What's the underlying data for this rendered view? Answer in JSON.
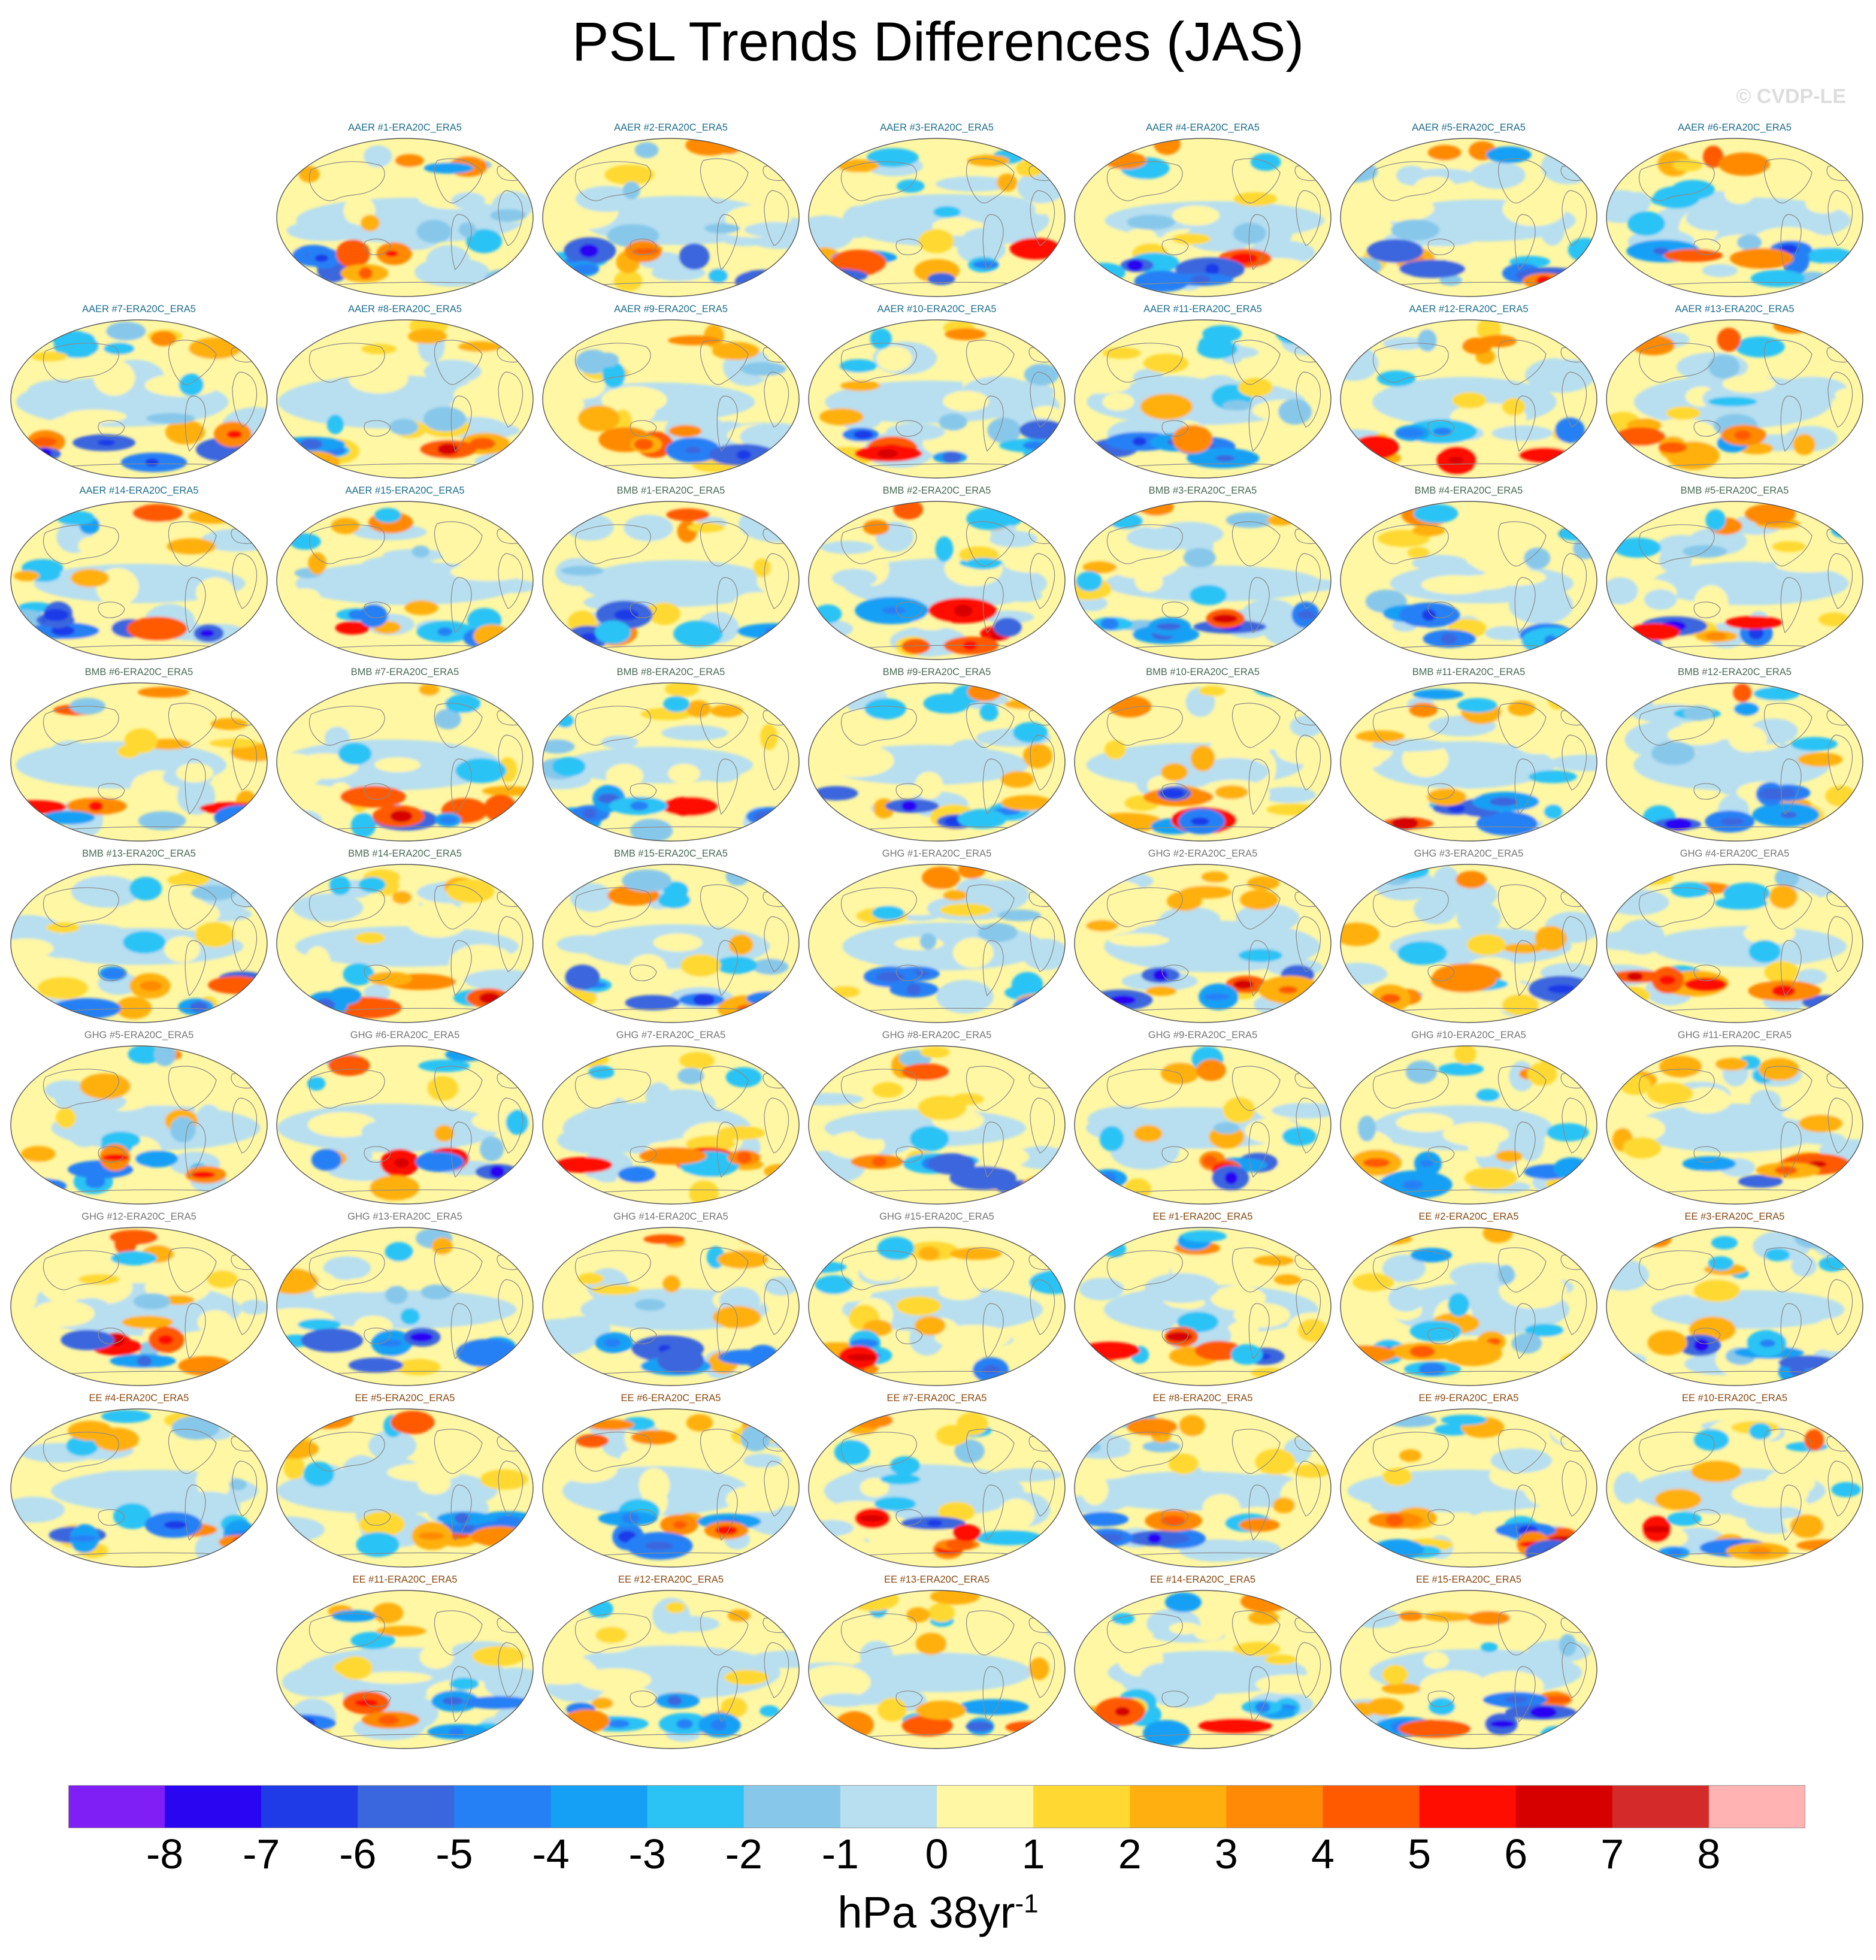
{
  "figure": {
    "title": "PSL Trends Differences (JAS)",
    "watermark": "© CVDP-LE",
    "units": {
      "base": "hPa 38yr",
      "exponent": "-1"
    }
  },
  "chart_data": {
    "type": "heatmap",
    "title": "PSL Trends Differences (JAS)",
    "projection": "global map (Robinson-like)",
    "panel_layout": "grid of 7 columns × 9 rows",
    "panels": [
      {
        "label": "AAER #1-ERA20C_ERA5",
        "group": "AAER"
      },
      {
        "label": "AAER #2-ERA20C_ERA5",
        "group": "AAER"
      },
      {
        "label": "AAER #3-ERA20C_ERA5",
        "group": "AAER"
      },
      {
        "label": "AAER #4-ERA20C_ERA5",
        "group": "AAER"
      },
      {
        "label": "AAER #5-ERA20C_ERA5",
        "group": "AAER"
      },
      {
        "label": "AAER #6-ERA20C_ERA5",
        "group": "AAER"
      },
      {
        "label": "AAER #7-ERA20C_ERA5",
        "group": "AAER"
      },
      {
        "label": "AAER #8-ERA20C_ERA5",
        "group": "AAER"
      },
      {
        "label": "AAER #9-ERA20C_ERA5",
        "group": "AAER"
      },
      {
        "label": "AAER #10-ERA20C_ERA5",
        "group": "AAER"
      },
      {
        "label": "AAER #11-ERA20C_ERA5",
        "group": "AAER"
      },
      {
        "label": "AAER #12-ERA20C_ERA5",
        "group": "AAER"
      },
      {
        "label": "AAER #13-ERA20C_ERA5",
        "group": "AAER"
      },
      {
        "label": "AAER #14-ERA20C_ERA5",
        "group": "AAER"
      },
      {
        "label": "AAER #15-ERA20C_ERA5",
        "group": "AAER"
      },
      {
        "label": "BMB #1-ERA20C_ERA5",
        "group": "BMB"
      },
      {
        "label": "BMB #2-ERA20C_ERA5",
        "group": "BMB"
      },
      {
        "label": "BMB #3-ERA20C_ERA5",
        "group": "BMB"
      },
      {
        "label": "BMB #4-ERA20C_ERA5",
        "group": "BMB"
      },
      {
        "label": "BMB #5-ERA20C_ERA5",
        "group": "BMB"
      },
      {
        "label": "BMB #6-ERA20C_ERA5",
        "group": "BMB"
      },
      {
        "label": "BMB #7-ERA20C_ERA5",
        "group": "BMB"
      },
      {
        "label": "BMB #8-ERA20C_ERA5",
        "group": "BMB"
      },
      {
        "label": "BMB #9-ERA20C_ERA5",
        "group": "BMB"
      },
      {
        "label": "BMB #10-ERA20C_ERA5",
        "group": "BMB"
      },
      {
        "label": "BMB #11-ERA20C_ERA5",
        "group": "BMB"
      },
      {
        "label": "BMB #12-ERA20C_ERA5",
        "group": "BMB"
      },
      {
        "label": "BMB #13-ERA20C_ERA5",
        "group": "BMB"
      },
      {
        "label": "BMB #14-ERA20C_ERA5",
        "group": "BMB"
      },
      {
        "label": "BMB #15-ERA20C_ERA5",
        "group": "BMB"
      },
      {
        "label": "GHG #1-ERA20C_ERA5",
        "group": "GHG"
      },
      {
        "label": "GHG #2-ERA20C_ERA5",
        "group": "GHG"
      },
      {
        "label": "GHG #3-ERA20C_ERA5",
        "group": "GHG"
      },
      {
        "label": "GHG #4-ERA20C_ERA5",
        "group": "GHG"
      },
      {
        "label": "GHG #5-ERA20C_ERA5",
        "group": "GHG"
      },
      {
        "label": "GHG #6-ERA20C_ERA5",
        "group": "GHG"
      },
      {
        "label": "GHG #7-ERA20C_ERA5",
        "group": "GHG"
      },
      {
        "label": "GHG #8-ERA20C_ERA5",
        "group": "GHG"
      },
      {
        "label": "GHG #9-ERA20C_ERA5",
        "group": "GHG"
      },
      {
        "label": "GHG #10-ERA20C_ERA5",
        "group": "GHG"
      },
      {
        "label": "GHG #11-ERA20C_ERA5",
        "group": "GHG"
      },
      {
        "label": "GHG #12-ERA20C_ERA5",
        "group": "GHG"
      },
      {
        "label": "GHG #13-ERA20C_ERA5",
        "group": "GHG"
      },
      {
        "label": "GHG #14-ERA20C_ERA5",
        "group": "GHG"
      },
      {
        "label": "GHG #15-ERA20C_ERA5",
        "group": "GHG"
      },
      {
        "label": "EE #1-ERA20C_ERA5",
        "group": "EE"
      },
      {
        "label": "EE #2-ERA20C_ERA5",
        "group": "EE"
      },
      {
        "label": "EE #3-ERA20C_ERA5",
        "group": "EE"
      },
      {
        "label": "EE #4-ERA20C_ERA5",
        "group": "EE"
      },
      {
        "label": "EE #5-ERA20C_ERA5",
        "group": "EE"
      },
      {
        "label": "EE #6-ERA20C_ERA5",
        "group": "EE"
      },
      {
        "label": "EE #7-ERA20C_ERA5",
        "group": "EE"
      },
      {
        "label": "EE #8-ERA20C_ERA5",
        "group": "EE"
      },
      {
        "label": "EE #9-ERA20C_ERA5",
        "group": "EE"
      },
      {
        "label": "EE #10-ERA20C_ERA5",
        "group": "EE"
      },
      {
        "label": "EE #11-ERA20C_ERA5",
        "group": "EE"
      },
      {
        "label": "EE #12-ERA20C_ERA5",
        "group": "EE"
      },
      {
        "label": "EE #13-ERA20C_ERA5",
        "group": "EE"
      },
      {
        "label": "EE #14-ERA20C_ERA5",
        "group": "EE"
      },
      {
        "label": "EE #15-ERA20C_ERA5",
        "group": "EE"
      }
    ],
    "group_title_colors": {
      "AAER": "#1f6e8c",
      "BMB": "#4a6b57",
      "GHG": "#777777",
      "EE": "#8a4b12"
    },
    "colorbar": {
      "levels": [
        -8,
        -7,
        -6,
        -5,
        -4,
        -3,
        -2,
        -1,
        0,
        1,
        2,
        3,
        4,
        5,
        6,
        7,
        8
      ],
      "tick_labels": [
        "-8",
        "-7",
        "-6",
        "-5",
        "-4",
        "-3",
        "-2",
        "-1",
        "0",
        "1",
        "2",
        "3",
        "4",
        "5",
        "6",
        "7",
        "8"
      ],
      "colors": [
        "#7f1ff5",
        "#2a05f2",
        "#1f3be8",
        "#3a66de",
        "#2680f5",
        "#16a0f5",
        "#2bc3f5",
        "#87c8ea",
        "#b7dff0",
        "#fff7a3",
        "#ffd932",
        "#ffb010",
        "#ff8a05",
        "#ff5a00",
        "#ff0e00",
        "#d70000",
        "#d42a2a",
        "#ffb3b3"
      ],
      "units": "hPa 38yr⁻¹"
    }
  }
}
